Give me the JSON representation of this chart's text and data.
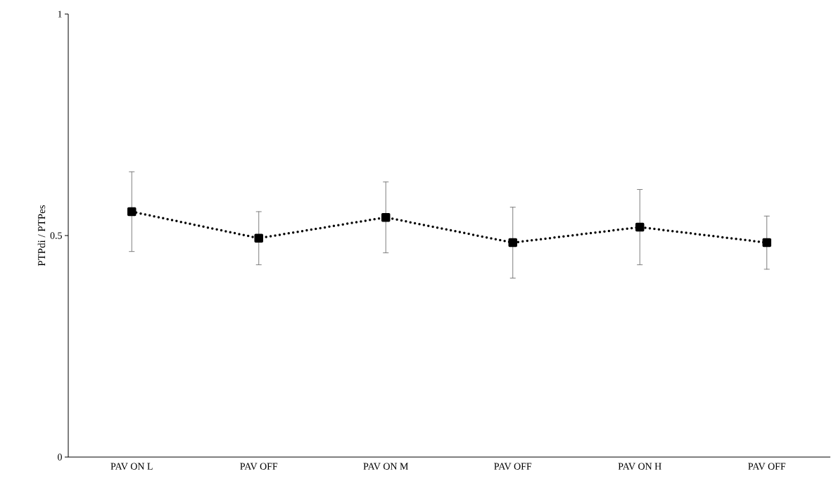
{
  "chart_data": {
    "type": "line",
    "ylabel": "PTPdi / PTPes",
    "categories": [
      "PAV ON L",
      "PAV OFF",
      "PAV ON M",
      "PAV OFF",
      "PAV ON H",
      "PAV OFF"
    ],
    "series": [
      {
        "color": "#000000",
        "values": [
          0.554,
          0.494,
          0.541,
          0.484,
          0.519,
          0.484
        ],
        "errors": [
          0.09,
          0.06,
          0.08,
          0.08,
          0.085,
          0.06
        ]
      }
    ],
    "ylim": [
      0,
      1
    ],
    "yticks": [
      0,
      0.5,
      1
    ],
    "grid": false,
    "marker": "square",
    "line_style": "dotted"
  }
}
